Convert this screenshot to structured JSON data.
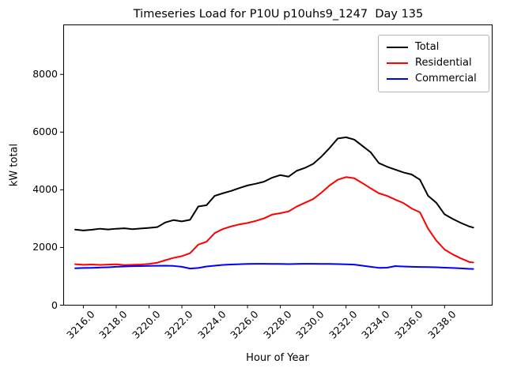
{
  "title": "Timeseries Load for P10U p10uhs9_1247  Day 135",
  "axes": {
    "xlabel": "Hour of Year",
    "ylabel": "kW total",
    "xtick_labels": [
      "3216.0",
      "3218.0",
      "3220.0",
      "3222.0",
      "3224.0",
      "3226.0",
      "3228.0",
      "3230.0",
      "3232.0",
      "3234.0",
      "3236.0",
      "3238.0"
    ],
    "ytick_labels": [
      "0",
      "2000",
      "4000",
      "6000",
      "8000"
    ]
  },
  "legend": {
    "items": [
      {
        "label": "Total",
        "color": "#000000"
      },
      {
        "label": "Residential",
        "color": "#ff0000"
      },
      {
        "label": "Commercial",
        "color": "#0000ff"
      }
    ]
  },
  "chart_data": {
    "type": "line",
    "title": "Timeseries Load for P10U p10uhs9_1247  Day 135",
    "xlabel": "Hour of Year",
    "ylabel": "kW total",
    "xlim": [
      3214.8,
      3240.9
    ],
    "ylim": [
      0,
      9717
    ],
    "xticks": [
      3216,
      3218,
      3220,
      3222,
      3224,
      3226,
      3228,
      3230,
      3232,
      3234,
      3236,
      3238
    ],
    "yticks": [
      0,
      2000,
      4000,
      6000,
      8000
    ],
    "grid": false,
    "legend_position": "upper right",
    "x": [
      3215.5,
      3216.0,
      3216.5,
      3217.0,
      3217.5,
      3218.0,
      3218.5,
      3219.0,
      3219.5,
      3220.0,
      3220.5,
      3221.0,
      3221.5,
      3222.0,
      3222.5,
      3223.0,
      3223.5,
      3224.0,
      3224.5,
      3225.0,
      3225.5,
      3226.0,
      3226.5,
      3227.0,
      3227.5,
      3228.0,
      3228.5,
      3229.0,
      3229.5,
      3230.0,
      3230.5,
      3231.0,
      3231.5,
      3232.0,
      3232.5,
      3233.0,
      3233.5,
      3234.0,
      3234.5,
      3235.0,
      3235.5,
      3236.0,
      3236.5,
      3237.0,
      3237.5,
      3238.0,
      3238.5,
      3239.0,
      3239.5,
      3239.75
    ],
    "series": [
      {
        "name": "Total",
        "color": "#000000",
        "values": [
          2620,
          2590,
          2615,
          2650,
          2625,
          2650,
          2665,
          2635,
          2660,
          2680,
          2705,
          2870,
          2950,
          2905,
          2960,
          3420,
          3465,
          3790,
          3880,
          3960,
          4060,
          4150,
          4210,
          4280,
          4420,
          4510,
          4455,
          4660,
          4760,
          4900,
          5150,
          5450,
          5780,
          5820,
          5740,
          5520,
          5300,
          4925,
          4800,
          4700,
          4600,
          4530,
          4350,
          3790,
          3550,
          3150,
          2990,
          2850,
          2730,
          2690
        ]
      },
      {
        "name": "Residential",
        "color": "#ff0000",
        "values": [
          1420,
          1400,
          1410,
          1395,
          1405,
          1415,
          1390,
          1400,
          1410,
          1430,
          1470,
          1560,
          1640,
          1700,
          1800,
          2100,
          2200,
          2500,
          2640,
          2730,
          2800,
          2850,
          2920,
          3010,
          3140,
          3190,
          3250,
          3420,
          3550,
          3680,
          3900,
          4150,
          4350,
          4440,
          4400,
          4230,
          4050,
          3880,
          3790,
          3660,
          3540,
          3350,
          3220,
          2650,
          2240,
          1930,
          1760,
          1620,
          1500,
          1480
        ]
      },
      {
        "name": "Commercial",
        "color": "#0000ff",
        "values": [
          1280,
          1290,
          1295,
          1305,
          1315,
          1330,
          1340,
          1350,
          1355,
          1360,
          1365,
          1370,
          1360,
          1330,
          1270,
          1290,
          1340,
          1370,
          1395,
          1410,
          1420,
          1430,
          1435,
          1435,
          1430,
          1430,
          1425,
          1430,
          1435,
          1435,
          1430,
          1430,
          1425,
          1415,
          1405,
          1370,
          1330,
          1295,
          1300,
          1355,
          1340,
          1330,
          1325,
          1320,
          1315,
          1300,
          1290,
          1275,
          1260,
          1255
        ]
      }
    ]
  }
}
